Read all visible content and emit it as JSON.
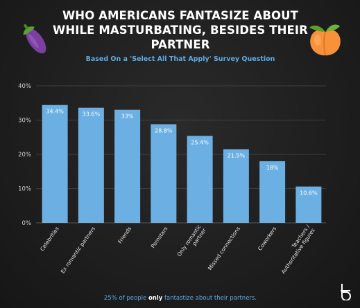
{
  "title": "WHO AMERICANS FANTASIZE ABOUT WHILE MASTURBATING, BESIDES THEIR PARTNER",
  "subtitle": "Based On a 'Select All That Apply' Survey Question",
  "footnote": {
    "before": "25% of people ",
    "emphasis": "only",
    "after": " fantastize about their partners."
  },
  "icons": [
    "eggplant-emoji",
    "peach-emoji",
    "brand-logo-icon"
  ],
  "colors": {
    "bar": "#6cb0e3",
    "accent": "#5ea9e0",
    "background": "#1d1d1d",
    "grid": "#4a4a4a"
  },
  "chart_data": {
    "type": "bar",
    "categories": [
      "Celebrities",
      "Ex romantic partners",
      "Friends",
      "Pornstars",
      "Only romantic partner",
      "Missed connections",
      "Coworkers",
      "Teachers / Authoritative figures"
    ],
    "category_lines": [
      [
        "Celebrities"
      ],
      [
        "Ex romantic partners"
      ],
      [
        "Friends"
      ],
      [
        "Pornstars"
      ],
      [
        "Only romantic",
        "partner"
      ],
      [
        "Missed connections"
      ],
      [
        "Coworkers"
      ],
      [
        "Teachers /",
        "Authoritative figures"
      ]
    ],
    "values": [
      34.4,
      33.6,
      33,
      28.8,
      25.4,
      21.5,
      18,
      10.6
    ],
    "value_labels": [
      "34.4%",
      "33.6%",
      "33%",
      "28.8%",
      "25.4%",
      "21.5%",
      "18%",
      "10.6%"
    ],
    "yticks": [
      0,
      10,
      20,
      30,
      40
    ],
    "ytick_labels": [
      "0%",
      "10%",
      "20%",
      "30%",
      "40%"
    ],
    "ylim": [
      0,
      40
    ],
    "grid": true,
    "xlabel": "",
    "ylabel": ""
  }
}
